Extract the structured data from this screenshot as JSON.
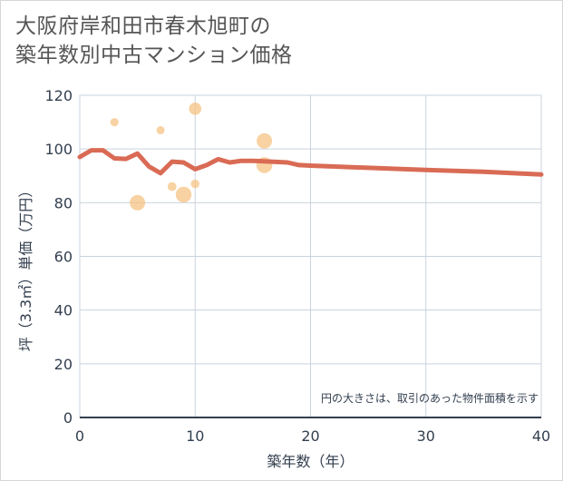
{
  "title_line1": "大阪府岸和田市春木旭町の",
  "title_line2": "築年数別中古マンション価格",
  "chart_data": {
    "type": "scatter",
    "xlabel": "築年数（年）",
    "ylabel": "坪（3.3㎡）単価（万円）",
    "xlim": [
      0,
      40
    ],
    "ylim": [
      0,
      120
    ],
    "x_ticks": [
      0,
      10,
      20,
      30,
      40
    ],
    "y_ticks": [
      0,
      20,
      40,
      60,
      80,
      100,
      120
    ],
    "grid": true,
    "note": "円の大きさは、取引のあった物件面積を示す",
    "series": [
      {
        "name": "average",
        "kind": "line",
        "color": "#d96b55",
        "points": [
          [
            0,
            97
          ],
          [
            1,
            99.5
          ],
          [
            2,
            99.5
          ],
          [
            3,
            96.5
          ],
          [
            4,
            96.3
          ],
          [
            5,
            98.3
          ],
          [
            6,
            93.5
          ],
          [
            7,
            91
          ],
          [
            8,
            95.3
          ],
          [
            9,
            95
          ],
          [
            10,
            92.5
          ],
          [
            11,
            94
          ],
          [
            12,
            96.2
          ],
          [
            13,
            95
          ],
          [
            14,
            95.6
          ],
          [
            15,
            95.6
          ],
          [
            16,
            95.4
          ],
          [
            17,
            95.2
          ],
          [
            18,
            95
          ],
          [
            19,
            94
          ],
          [
            20,
            93.8
          ],
          [
            25,
            93
          ],
          [
            30,
            92.2
          ],
          [
            35,
            91.5
          ],
          [
            40,
            90.5
          ]
        ]
      },
      {
        "name": "transactions",
        "kind": "bubble",
        "color": "#f5c383",
        "points": [
          {
            "x": 3,
            "y": 110,
            "size": 1
          },
          {
            "x": 5,
            "y": 80,
            "size": 4
          },
          {
            "x": 7,
            "y": 107,
            "size": 1
          },
          {
            "x": 8,
            "y": 86,
            "size": 1.2
          },
          {
            "x": 9,
            "y": 83,
            "size": 4.2
          },
          {
            "x": 10,
            "y": 115,
            "size": 2.5
          },
          {
            "x": 10,
            "y": 87,
            "size": 1.1
          },
          {
            "x": 16,
            "y": 103,
            "size": 4
          },
          {
            "x": 16,
            "y": 94,
            "size": 4.3
          }
        ]
      }
    ]
  }
}
